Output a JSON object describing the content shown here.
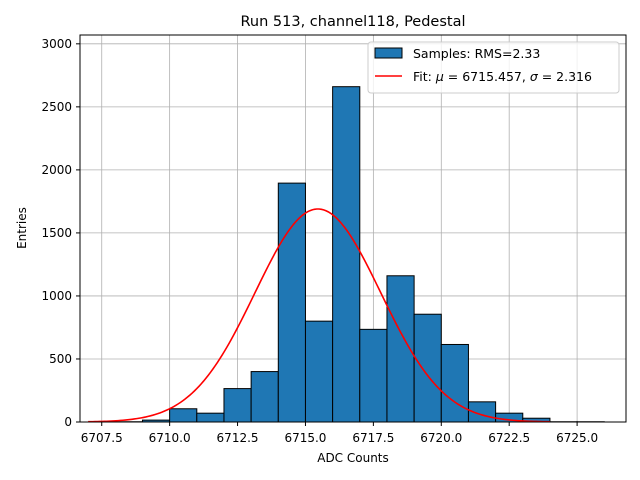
{
  "chart_data": {
    "type": "bar",
    "title": "Run 513, channel118, Pedestal",
    "xlabel": "ADC Counts",
    "ylabel": "Entries",
    "xlim": [
      6706.7,
      6726.8
    ],
    "ylim": [
      0,
      3070
    ],
    "grid": true,
    "legend_position": "top-right",
    "xticks": [
      6707.5,
      6710.0,
      6712.5,
      6715.0,
      6717.5,
      6720.0,
      6722.5,
      6725.0
    ],
    "xtick_labels": [
      "6707.5",
      "6710.0",
      "6712.5",
      "6715.0",
      "6717.5",
      "6720.0",
      "6722.5",
      "6725.0"
    ],
    "yticks": [
      0,
      500,
      1000,
      1500,
      2000,
      2500,
      3000
    ],
    "ytick_labels": [
      "0",
      "500",
      "1000",
      "1500",
      "2000",
      "2500",
      "3000"
    ],
    "histogram": {
      "name": "Samples: RMS=2.33",
      "color": "#1f77b4",
      "edge_color": "#000000",
      "bin_edges": [
        6708.0,
        6709.0,
        6710.0,
        6711.0,
        6712.0,
        6713.0,
        6714.0,
        6715.0,
        6716.0,
        6717.0,
        6718.0,
        6719.0,
        6720.0,
        6721.0,
        6722.0,
        6723.0,
        6724.0,
        6725.0,
        6726.0
      ],
      "counts": [
        2,
        15,
        105,
        70,
        265,
        400,
        1895,
        800,
        2660,
        735,
        1160,
        855,
        615,
        160,
        70,
        30,
        2,
        2
      ]
    },
    "fit": {
      "name_prefix": "Fit: ",
      "name_mu": "μ",
      "name_mid": " = 6715.457, ",
      "name_sigma": "σ",
      "name_end": " = 2.316",
      "color": "#ff0000",
      "mu": 6715.457,
      "sigma": 2.316,
      "amplitude": 1690,
      "x_range": [
        6707.0,
        6724.0
      ]
    }
  }
}
